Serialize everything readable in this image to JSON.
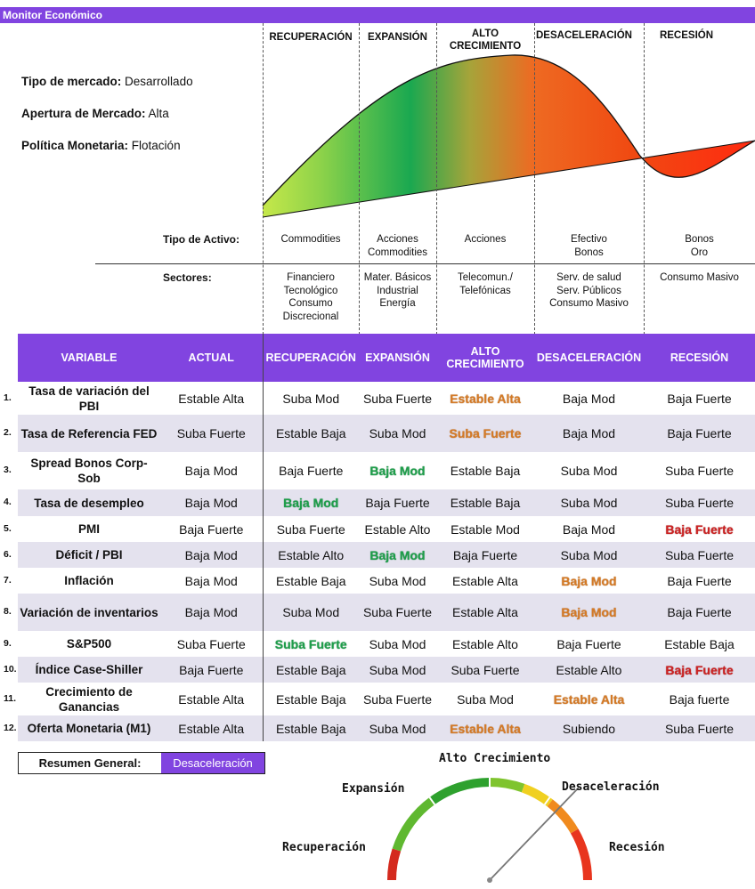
{
  "app_title": "Monitor Económico",
  "market_info": [
    {
      "label": "Tipo de mercado:",
      "value": "Desarrollado"
    },
    {
      "label": "Apertura de Mercado:",
      "value": "Alta"
    },
    {
      "label": "Política Monetaria:",
      "value": "Flotación"
    }
  ],
  "phases": [
    "RECUPERACIÓN",
    "EXPANSIÓN",
    "ALTO CRECIMIENTO",
    "DESACELERACIÓN",
    "RECESIÓN"
  ],
  "asset_label": "Tipo de Activo:",
  "assets": [
    "Commodities",
    "Acciones\nCommodities",
    "Acciones",
    "Efectivo\nBonos",
    "Bonos\nOro"
  ],
  "sector_label": "Sectores:",
  "sectors": [
    "Financiero\nTecnológico\nConsumo\nDiscrecional",
    "Mater. Básicos\nIndustrial\nEnergía",
    "Telecomun./\nTelefónicas",
    "Serv. de salud\nServ. Públicos\nConsumo Masivo",
    "Consumo Masivo"
  ],
  "table": {
    "headers": [
      "VARIABLE",
      "ACTUAL",
      "RECUPERACIÓN",
      "EXPANSIÓN",
      "ALTO CRECIMIENTO",
      "DESACELERACIÓN",
      "RECESIÓN"
    ],
    "rows": [
      {
        "num": "1.",
        "variable": "Tasa de variación del PBI",
        "actual": "Estable Alta",
        "cells": [
          "Suba Mod",
          "Suba Fuerte",
          "Estable Alta",
          "Baja Mod",
          "Baja Fuerte"
        ]
      },
      {
        "num": "2.",
        "variable": "Tasa de Referencia FED",
        "actual": "Suba Fuerte",
        "cells": [
          "Estable Baja",
          "Suba Mod",
          "Suba Fuerte",
          "Baja Mod",
          "Baja Fuerte"
        ]
      },
      {
        "num": "3.",
        "variable": "Spread Bonos Corp-Sob",
        "actual": "Baja Mod",
        "cells": [
          "Baja Fuerte",
          "Baja Mod",
          "Estable Baja",
          "Suba Mod",
          "Suba Fuerte"
        ]
      },
      {
        "num": "4.",
        "variable": "Tasa de desempleo",
        "actual": "Baja Mod",
        "cells": [
          "Baja Mod",
          "Baja Fuerte",
          "Estable Baja",
          "Suba Mod",
          "Suba Fuerte"
        ]
      },
      {
        "num": "5.",
        "variable": "PMI",
        "actual": "Baja Fuerte",
        "cells": [
          "Suba Fuerte",
          "Estable Alto",
          "Estable Mod",
          "Baja Mod",
          "Baja Fuerte"
        ]
      },
      {
        "num": "6.",
        "variable": "Déficit / PBI",
        "actual": "Baja Mod",
        "cells": [
          "Estable Alto",
          "Baja Mod",
          "Baja Fuerte",
          "Suba Mod",
          "Suba Fuerte"
        ]
      },
      {
        "num": "7.",
        "variable": "Inflación",
        "actual": "Baja Mod",
        "cells": [
          "Estable Baja",
          "Suba Mod",
          "Estable Alta",
          "Baja Mod",
          "Baja Fuerte"
        ]
      },
      {
        "num": "8.",
        "variable": "Variación de inventarios",
        "actual": "Baja Mod",
        "cells": [
          "Suba Mod",
          "Suba Fuerte",
          "Estable Alta",
          "Baja Mod",
          "Baja Fuerte"
        ]
      },
      {
        "num": "9.",
        "variable": "S&P500",
        "actual": "Suba Fuerte",
        "cells": [
          "Suba Fuerte",
          "Suba Mod",
          "Estable Alto",
          "Baja Fuerte",
          "Estable Baja"
        ]
      },
      {
        "num": "10.",
        "variable": "Índice Case-Shiller",
        "actual": "Baja Fuerte",
        "cells": [
          "Estable Baja",
          "Suba Mod",
          "Suba Fuerte",
          "Estable Alto",
          "Baja Fuerte"
        ]
      },
      {
        "num": "11.",
        "variable": "Crecimiento de Ganancias",
        "actual": "Estable Alta",
        "cells": [
          "Estable Baja",
          "Suba Fuerte",
          "Suba Mod",
          "Estable Alta",
          "Baja fuerte"
        ]
      },
      {
        "num": "12.",
        "variable": "Oferta Monetaria (M1)",
        "actual": "Estable Alta",
        "cells": [
          "Estable Baja",
          "Suba Mod",
          "Estable Alta",
          "Subiendo",
          "Suba Fuerte"
        ]
      }
    ]
  },
  "highlight_colors": {
    "orange": "#d57a26",
    "green": "#1e9e4a",
    "red": "#cc2222",
    "accent": "#8144e0"
  },
  "summary": {
    "label": "Resumen General:",
    "value": "Desaceleración"
  },
  "gauge": {
    "labels": [
      "Recuperación",
      "Expansión",
      "Alto Crecimiento",
      "Desaceleración",
      "Recesión"
    ],
    "current": "Desaceleración"
  }
}
